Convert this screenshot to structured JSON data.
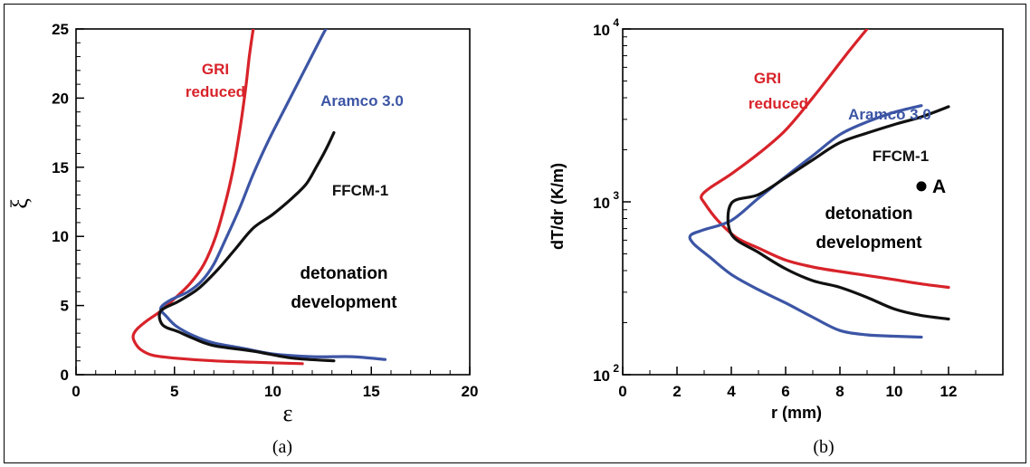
{
  "chart_data": [
    {
      "type": "line",
      "caption": "(a)",
      "xlabel": "ε",
      "ylabel": "ξ",
      "xlim": [
        0,
        20
      ],
      "ylim": [
        0,
        25
      ],
      "xticks": [
        "0",
        "5",
        "10",
        "15",
        "20"
      ],
      "yticks": [
        "0",
        "5",
        "10",
        "15",
        "20",
        "25"
      ],
      "region_label": [
        "detonation",
        "development"
      ],
      "series": [
        {
          "name": "GRI reduced",
          "label_lines": [
            "GRI",
            "reduced"
          ],
          "color": "#d8232a",
          "points": [
            [
              11.5,
              0.8
            ],
            [
              9.0,
              0.9
            ],
            [
              7.0,
              1.0
            ],
            [
              5.0,
              1.2
            ],
            [
              3.9,
              1.4
            ],
            [
              3.3,
              1.8
            ],
            [
              3.0,
              2.3
            ],
            [
              2.9,
              2.8
            ],
            [
              3.1,
              3.3
            ],
            [
              3.6,
              3.9
            ],
            [
              4.3,
              4.6
            ],
            [
              5.0,
              5.5
            ],
            [
              5.8,
              6.6
            ],
            [
              6.5,
              8.0
            ],
            [
              7.1,
              10.0
            ],
            [
              7.6,
              12.5
            ],
            [
              8.0,
              15.0
            ],
            [
              8.3,
              17.5
            ],
            [
              8.6,
              20.5
            ],
            [
              8.8,
              23.0
            ],
            [
              9.0,
              25.0
            ]
          ]
        },
        {
          "name": "Aramco 3.0",
          "label_lines": [
            "Aramco 3.0"
          ],
          "color": "#3c55a5",
          "points": [
            [
              15.7,
              1.1
            ],
            [
              14.0,
              1.3
            ],
            [
              12.0,
              1.3
            ],
            [
              10.0,
              1.5
            ],
            [
              8.5,
              1.9
            ],
            [
              7.0,
              2.3
            ],
            [
              6.0,
              2.8
            ],
            [
              5.1,
              3.5
            ],
            [
              4.6,
              4.2
            ],
            [
              4.3,
              4.8
            ],
            [
              4.8,
              5.4
            ],
            [
              5.7,
              6.0
            ],
            [
              6.4,
              6.8
            ],
            [
              7.0,
              8.0
            ],
            [
              7.6,
              9.8
            ],
            [
              8.3,
              12.0
            ],
            [
              9.0,
              14.5
            ],
            [
              9.8,
              17.0
            ],
            [
              10.7,
              19.5
            ],
            [
              11.6,
              22.0
            ],
            [
              12.5,
              24.5
            ],
            [
              12.7,
              25.0
            ]
          ]
        },
        {
          "name": "FFCM-1",
          "label_lines": [
            "FFCM-1"
          ],
          "color": "#111111",
          "points": [
            [
              13.1,
              1.0
            ],
            [
              11.0,
              1.2
            ],
            [
              9.0,
              1.7
            ],
            [
              7.0,
              2.1
            ],
            [
              6.0,
              2.6
            ],
            [
              5.2,
              3.1
            ],
            [
              4.4,
              3.6
            ],
            [
              4.3,
              4.6
            ],
            [
              5.2,
              5.3
            ],
            [
              6.2,
              6.2
            ],
            [
              7.2,
              7.6
            ],
            [
              8.1,
              9.1
            ],
            [
              9.0,
              10.6
            ],
            [
              10.0,
              11.6
            ],
            [
              11.0,
              12.8
            ],
            [
              11.7,
              13.8
            ],
            [
              12.2,
              15.0
            ],
            [
              12.7,
              16.3
            ],
            [
              13.1,
              17.5
            ]
          ]
        }
      ]
    },
    {
      "type": "line",
      "caption": "(b)",
      "xlabel": "r (mm)",
      "ylabel": "dT/dr (K/m)",
      "scale_y": "log",
      "xlim": [
        0,
        14
      ],
      "ylim": [
        100,
        10000
      ],
      "xticks": [
        "0",
        "2",
        "4",
        "6",
        "8",
        "10",
        "12"
      ],
      "yticks": [
        {
          "base": "10",
          "exp": "2"
        },
        {
          "base": "10",
          "exp": "3"
        },
        {
          "base": "10",
          "exp": "4"
        }
      ],
      "region_label": [
        "detonation",
        "development"
      ],
      "point_label": {
        "text": "A",
        "x": 11.0,
        "y": 1230
      },
      "series": [
        {
          "name": "GRI reduced",
          "label_lines": [
            "GRI",
            "reduced"
          ],
          "color": "#d8232a",
          "points": [
            [
              9.0,
              10000
            ],
            [
              8.2,
              7000
            ],
            [
              7.0,
              4000
            ],
            [
              6.0,
              2600
            ],
            [
              5.0,
              1900
            ],
            [
              4.0,
              1450
            ],
            [
              3.2,
              1200
            ],
            [
              2.9,
              1080
            ],
            [
              3.0,
              990
            ],
            [
              3.5,
              780
            ],
            [
              4.2,
              620
            ],
            [
              5.0,
              540
            ],
            [
              6.0,
              460
            ],
            [
              7.0,
              420
            ],
            [
              8.0,
              395
            ],
            [
              9.0,
              375
            ],
            [
              10.0,
              355
            ],
            [
              11.0,
              335
            ],
            [
              12.0,
              320
            ]
          ]
        },
        {
          "name": "Aramco 3.0",
          "label_lines": [
            "Aramco 3.0"
          ],
          "color": "#3c55a5",
          "points": [
            [
              11.0,
              165
            ],
            [
              10.0,
              167
            ],
            [
              9.0,
              170
            ],
            [
              8.0,
              180
            ],
            [
              7.0,
              215
            ],
            [
              6.0,
              260
            ],
            [
              5.0,
              310
            ],
            [
              4.0,
              380
            ],
            [
              3.2,
              480
            ],
            [
              2.6,
              575
            ],
            [
              2.5,
              640
            ],
            [
              3.0,
              690
            ],
            [
              4.0,
              780
            ],
            [
              5.0,
              1050
            ],
            [
              6.0,
              1400
            ],
            [
              7.0,
              1850
            ],
            [
              8.0,
              2450
            ],
            [
              9.0,
              2900
            ],
            [
              10.0,
              3300
            ],
            [
              11.0,
              3600
            ]
          ]
        },
        {
          "name": "FFCM-1",
          "label_lines": [
            "FFCM-1"
          ],
          "color": "#111111",
          "points": [
            [
              12.0,
              210
            ],
            [
              11.0,
              220
            ],
            [
              10.0,
              240
            ],
            [
              9.0,
              280
            ],
            [
              8.0,
              320
            ],
            [
              7.0,
              350
            ],
            [
              6.0,
              410
            ],
            [
              5.0,
              510
            ],
            [
              4.0,
              650
            ],
            [
              4.0,
              980
            ],
            [
              5.0,
              1100
            ],
            [
              6.0,
              1380
            ],
            [
              7.0,
              1750
            ],
            [
              8.0,
              2200
            ],
            [
              9.0,
              2500
            ],
            [
              10.0,
              2800
            ],
            [
              11.0,
              3100
            ],
            [
              12.0,
              3550
            ]
          ]
        }
      ]
    }
  ]
}
